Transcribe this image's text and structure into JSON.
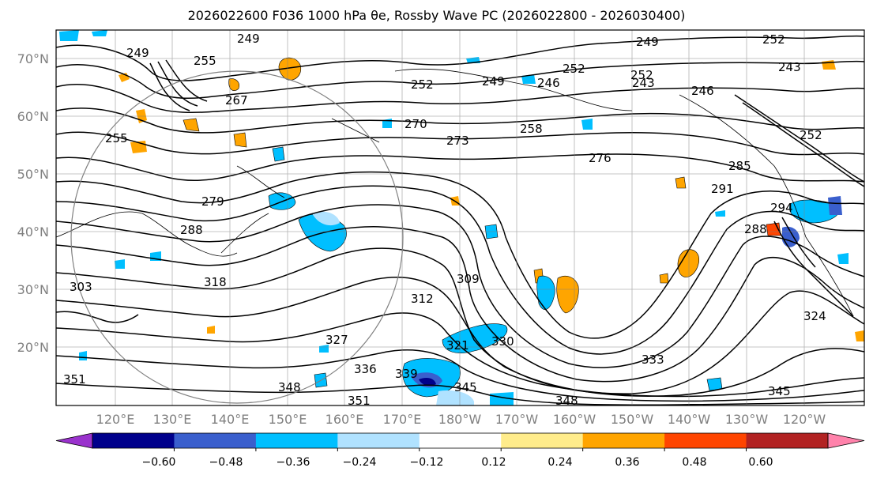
{
  "title": "2026022600 F036 1000 hPa θe, Rossby Wave PC (2026022800 - 2026030400)",
  "lat_labels": [
    "70°N",
    "60°N",
    "50°N",
    "40°N",
    "30°N",
    "20°N"
  ],
  "lon_labels": [
    "120°E",
    "130°E",
    "140°E",
    "150°E",
    "160°E",
    "170°E",
    "180°W",
    "170°W",
    "160°W",
    "150°W",
    "140°W",
    "130°W",
    "120°W"
  ],
  "colorbar": {
    "colors": [
      "#9a32cd",
      "#00008b",
      "#3a5fcd",
      "#00bfff",
      "#b0e2ff",
      "#ffffff",
      "#ffec8b",
      "#ffa500",
      "#ff4500",
      "#b22222",
      "#ff82ab"
    ],
    "ticks": [
      "−0.60",
      "−0.48",
      "−0.36",
      "−0.24",
      "−0.12",
      "0.12",
      "0.24",
      "0.36",
      "0.48",
      "0.60"
    ]
  },
  "contour_labels": [
    "249",
    "252",
    "255",
    "267",
    "249",
    "255",
    "252",
    "249",
    "246",
    "252",
    "243",
    "252",
    "249",
    "246",
    "243",
    "252",
    "270",
    "273",
    "258",
    "276",
    "285",
    "291",
    "294",
    "288",
    "279",
    "288",
    "303",
    "318",
    "309",
    "312",
    "324",
    "327",
    "321",
    "330",
    "333",
    "336",
    "339",
    "345",
    "348",
    "351",
    "348",
    "345",
    "351"
  ]
}
